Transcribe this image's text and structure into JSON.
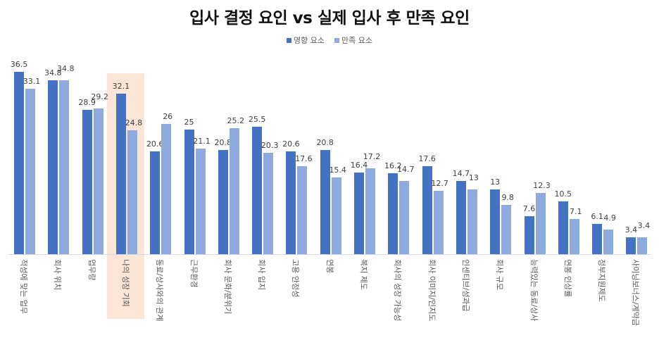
{
  "chart_data": {
    "type": "bar",
    "title": "입사 결정 요인 vs 실제 입사 후 만족 요인",
    "xlabel": "",
    "ylabel": "",
    "ylim": [
      0,
      38
    ],
    "grid": false,
    "legend_position": "top",
    "categories": [
      "적성에 맞는 업무",
      "회사 위치",
      "업무량",
      "나의 성장 기회",
      "동료/상사와의 관계",
      "근무환경",
      "회사 문화/분위기",
      "회사 입지",
      "고용 안정성",
      "연봉",
      "복지 제도",
      "회사의 성장 가능성",
      "회사 이미지/인지도",
      "인센티브/성과급",
      "회사 규모",
      "능력있는 동료/상사",
      "연봉 인상률",
      "정부지원제도",
      "사이닝보너스/계약금"
    ],
    "series": [
      {
        "name": "영향 요소",
        "color": "#4472C4",
        "values": [
          36.5,
          34.8,
          28.9,
          32.1,
          20.6,
          25,
          20.8,
          25.5,
          20.6,
          20.8,
          16.4,
          16.2,
          17.6,
          14.7,
          13,
          7.6,
          10.5,
          6.1,
          3.4
        ]
      },
      {
        "name": "만족 요소",
        "color": "#8FAADC",
        "values": [
          33.1,
          34.8,
          29.2,
          24.8,
          26,
          21.1,
          25.2,
          20.3,
          17.6,
          15.4,
          17.2,
          14.7,
          12.7,
          13,
          9.8,
          12.3,
          7.1,
          4.9,
          3.4
        ]
      }
    ],
    "annotations": [
      {
        "type": "highlight",
        "category": "나의 성장 기회",
        "color": "#FBE5D6"
      }
    ]
  },
  "labels": {
    "title": "입사 결정 요인 vs 실제 입사 후 만족 요인",
    "legend": [
      "영향 요소",
      "만족 요소"
    ]
  }
}
